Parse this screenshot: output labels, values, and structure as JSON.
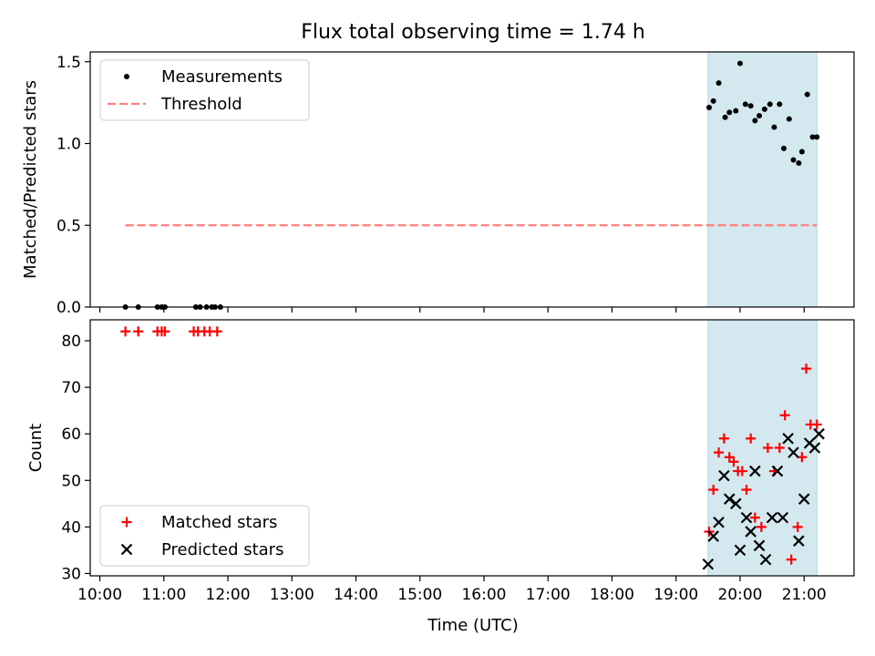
{
  "title": "Flux total observing time = 1.74 h",
  "xlabel": "Time (UTC)",
  "colors": {
    "shade": "#d3e9ef",
    "threshold": "#ff7f7f",
    "measurement": "#000000",
    "matched": "#ff0000",
    "predicted": "#000000"
  },
  "chart_data": [
    {
      "type": "scatter",
      "panel": "top",
      "ylabel": "Matched/Predicted stars",
      "ylim": [
        0,
        1.56
      ],
      "yticks": [
        0.0,
        0.5,
        1.0,
        1.5
      ],
      "ytick_labels": [
        "0.0",
        "0.5",
        "1.0",
        "1.5"
      ],
      "xlim_hours": [
        9.85,
        21.78
      ],
      "shaded_interval": [
        "19:30",
        "21:12"
      ],
      "legend": {
        "position": "top-left",
        "entries": [
          "Measurements",
          "Threshold"
        ]
      },
      "series": [
        {
          "name": "Measurements",
          "marker": "dot",
          "x": [
            "10:24",
            "10:36",
            "10:54",
            "10:58",
            "11:01",
            "11:30",
            "11:34",
            "11:40",
            "11:45",
            "11:48",
            "11:53",
            "19:31",
            "19:35",
            "19:40",
            "19:46",
            "19:50",
            "19:56",
            "20:00",
            "20:05",
            "20:10",
            "20:14",
            "20:18",
            "20:23",
            "20:28",
            "20:32",
            "20:37",
            "20:41",
            "20:46",
            "20:50",
            "20:55",
            "20:58",
            "21:03",
            "21:08",
            "21:12"
          ],
          "y": [
            0,
            0,
            0,
            0,
            0,
            0,
            0,
            0,
            0,
            0,
            0,
            1.22,
            1.26,
            1.37,
            1.16,
            1.19,
            1.2,
            1.49,
            1.24,
            1.23,
            1.14,
            1.17,
            1.21,
            1.24,
            1.1,
            1.24,
            0.97,
            1.15,
            0.9,
            0.88,
            0.95,
            1.3,
            1.04,
            1.04
          ]
        },
        {
          "name": "Threshold",
          "style": "dashed",
          "x": [
            "10:24",
            "21:12"
          ],
          "y": [
            0.5,
            0.5
          ]
        }
      ]
    },
    {
      "type": "scatter",
      "panel": "bottom",
      "ylabel": "Count",
      "ylim": [
        29.5,
        84.5
      ],
      "yticks": [
        30,
        40,
        50,
        60,
        70,
        80
      ],
      "ytick_labels": [
        "30",
        "40",
        "50",
        "60",
        "70",
        "80"
      ],
      "xlim_hours": [
        9.85,
        21.78
      ],
      "xticks": [
        "10:00",
        "11:00",
        "12:00",
        "13:00",
        "14:00",
        "15:00",
        "16:00",
        "17:00",
        "18:00",
        "19:00",
        "20:00",
        "21:00"
      ],
      "shaded_interval": [
        "19:30",
        "21:12"
      ],
      "legend": {
        "position": "bottom-left",
        "entries": [
          "Matched stars",
          "Predicted stars"
        ]
      },
      "series": [
        {
          "name": "Matched stars",
          "marker": "plus",
          "x": [
            "10:24",
            "10:36",
            "10:54",
            "10:58",
            "11:01",
            "11:28",
            "11:32",
            "11:38",
            "11:43",
            "11:50",
            "19:31",
            "19:35",
            "19:40",
            "19:45",
            "19:50",
            "19:54",
            "19:58",
            "20:02",
            "20:06",
            "20:10",
            "20:14",
            "20:20",
            "20:26",
            "20:32",
            "20:37",
            "20:42",
            "20:48",
            "20:54",
            "20:58",
            "21:02",
            "21:06",
            "21:12"
          ],
          "y": [
            82,
            82,
            82,
            82,
            82,
            82,
            82,
            82,
            82,
            82,
            39,
            48,
            56,
            59,
            55,
            54,
            52,
            52,
            48,
            59,
            42,
            40,
            57,
            52,
            57,
            64,
            33,
            40,
            55,
            74,
            62,
            62
          ]
        },
        {
          "name": "Predicted stars",
          "marker": "x",
          "x": [
            "19:30",
            "19:35",
            "19:40",
            "19:45",
            "19:50",
            "19:56",
            "20:00",
            "20:06",
            "20:10",
            "20:14",
            "20:18",
            "20:24",
            "20:30",
            "20:35",
            "20:40",
            "20:45",
            "20:50",
            "20:55",
            "21:00",
            "21:05",
            "21:10",
            "21:14"
          ],
          "y": [
            32,
            38,
            41,
            51,
            46,
            45,
            35,
            42,
            39,
            52,
            36,
            33,
            42,
            52,
            42,
            59,
            56,
            37,
            46,
            58,
            57,
            60
          ]
        }
      ]
    }
  ]
}
